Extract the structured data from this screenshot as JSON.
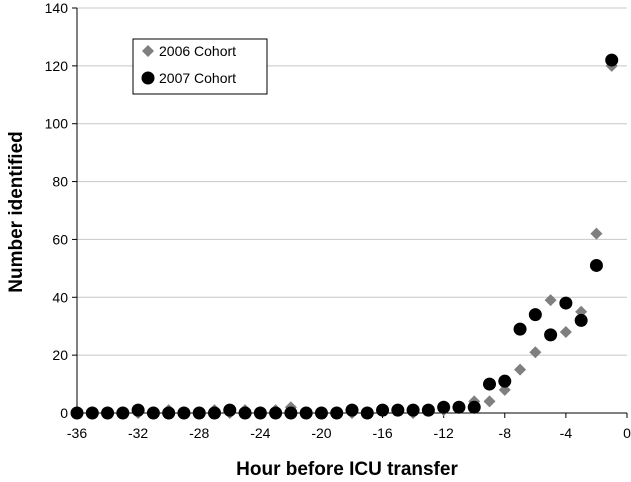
{
  "chart_data": {
    "type": "scatter",
    "xlabel": "Hour before ICU transfer",
    "ylabel": "Number identified",
    "xlim": [
      -36,
      0
    ],
    "ylim": [
      0,
      140
    ],
    "xticks": [
      -36,
      -32,
      -28,
      -24,
      -20,
      -16,
      -12,
      -8,
      -4,
      0
    ],
    "yticks": [
      0,
      20,
      40,
      60,
      80,
      100,
      120,
      140
    ],
    "grid": "horizontal",
    "legend_position": "top-left",
    "series": [
      {
        "name": "2006 Cohort",
        "marker": "diamond",
        "color": "#7f7f7f",
        "x": [
          -36,
          -35,
          -34,
          -33,
          -32,
          -31,
          -30,
          -29,
          -28,
          -27,
          -26,
          -25,
          -24,
          -23,
          -22,
          -21,
          -20,
          -19,
          -18,
          -17,
          -16,
          -15,
          -14,
          -13,
          -12,
          -11,
          -10,
          -9,
          -8,
          -7,
          -6,
          -5,
          -4,
          -3,
          -2,
          -1
        ],
        "y": [
          0,
          0,
          0,
          0,
          0,
          0,
          1,
          0,
          0,
          1,
          0,
          1,
          0,
          1,
          2,
          0,
          0,
          0,
          0,
          0,
          1,
          1,
          0,
          1,
          1,
          2,
          4,
          4,
          8,
          15,
          21,
          39,
          28,
          35,
          62,
          120
        ]
      },
      {
        "name": "2007 Cohort",
        "marker": "circle",
        "color": "#000000",
        "x": [
          -36,
          -35,
          -34,
          -33,
          -32,
          -31,
          -30,
          -29,
          -28,
          -27,
          -26,
          -25,
          -24,
          -23,
          -22,
          -21,
          -20,
          -19,
          -18,
          -17,
          -16,
          -15,
          -14,
          -13,
          -12,
          -11,
          -10,
          -9,
          -8,
          -7,
          -6,
          -5,
          -4,
          -3,
          -2,
          -1
        ],
        "y": [
          0,
          0,
          0,
          0,
          1,
          0,
          0,
          0,
          0,
          0,
          1,
          0,
          0,
          0,
          0,
          0,
          0,
          0,
          1,
          0,
          1,
          1,
          1,
          1,
          2,
          2,
          2,
          10,
          11,
          29,
          34,
          27,
          38,
          32,
          51,
          122
        ]
      }
    ]
  }
}
